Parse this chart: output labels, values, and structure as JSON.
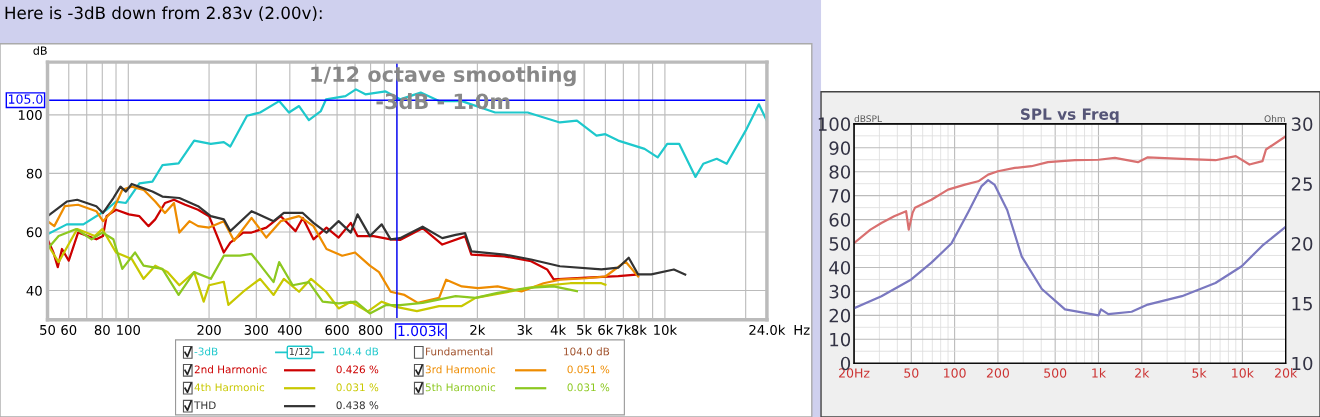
{
  "chart_data": [
    {
      "type": "line",
      "title": "Here is -3dB down from 2.83v (2.00v):",
      "xlabel": "Hz",
      "ylabel": "dB",
      "log": "x",
      "grid": true,
      "legend": "bottom",
      "xlim": [
        50,
        24000
      ],
      "ylim": [
        30,
        118
      ],
      "xticks": [
        50,
        60,
        {
          "value": 70,
          "label": null
        },
        80,
        {
          "value": 90,
          "label": null
        },
        100,
        200,
        300,
        400,
        {
          "value": 500,
          "label": null
        },
        600,
        {
          "value": 700,
          "label": null
        },
        800,
        {
          "value": 900,
          "label": null
        },
        {
          "value": 1000,
          "label": null
        },
        {
          "value": 2000,
          "label": "2k"
        },
        {
          "value": 3000,
          "label": "3k"
        },
        {
          "value": 4000,
          "label": "4k"
        },
        {
          "value": 5000,
          "label": "5k"
        },
        {
          "value": 6000,
          "label": "6k"
        },
        {
          "value": 7000,
          "label": "7k"
        },
        {
          "value": 8000,
          "label": "8k"
        },
        {
          "value": 9000,
          "label": null
        },
        {
          "value": 10000,
          "label": "10k"
        },
        {
          "value": 20000,
          "label": null
        },
        {
          "value": 24000,
          "label": "24.0k"
        }
      ],
      "yticks": [
        40,
        60,
        80,
        100
      ],
      "ref_lines": [
        {
          "axis": "y",
          "value": 105.0,
          "label": "105.0",
          "color": "#0000ff"
        },
        {
          "axis": "x",
          "value": 1003,
          "label": "1.003k",
          "color": "#0000ff"
        }
      ],
      "annotations": [
        "1/12 octave smoothing",
        "-3dB - 1.0m",
        "Fundamental",
        "104.0 dB",
        "1/12",
        "104.4 dB",
        "0.426 %",
        "0.051 %",
        "0.031 %",
        "0.031 %",
        "0.438 %"
      ],
      "series": [
        {
          "name": "-3dB",
          "color": "#1ec8cc",
          "x": [
            50,
            59,
            68,
            83,
            90,
            98,
            110,
            123,
            134,
            154,
            176,
            203,
            227,
            240,
            277,
            310,
            365,
            397,
            433,
            471,
            522,
            546,
            645,
            705,
            765,
            910,
            1030,
            1230,
            1440,
            1750,
            2330,
            3080,
            4060,
            4700,
            5560,
            6000,
            6700,
            8400,
            9400,
            10200,
            11300,
            13000,
            13900,
            15600,
            17000,
            20000,
            22400,
            24000
          ],
          "values": [
            59.2,
            62.6,
            62.6,
            67.6,
            70.4,
            69.9,
            76.6,
            77.2,
            82.8,
            83.4,
            91.2,
            90.1,
            90.7,
            89.2,
            99.7,
            100.8,
            104.7,
            100.8,
            103,
            98.2,
            101.3,
            105.3,
            106.4,
            108.7,
            107,
            108,
            105.3,
            107.6,
            104.7,
            104.7,
            100.8,
            100.8,
            97.4,
            98,
            92.9,
            93.4,
            91.2,
            88.4,
            85.5,
            90.1,
            90.1,
            78.8,
            83.3,
            85,
            83.3,
            94.6,
            103.6,
            97.9
          ]
        },
        {
          "name": "2nd Harmonic",
          "color": "#cc0000",
          "x": [
            50,
            52.6,
            54.6,
            56.6,
            60,
            65,
            76,
            80.5,
            83,
            90,
            100.5,
            110,
            119,
            126,
            137,
            148,
            163,
            182,
            200,
            227,
            240,
            268,
            288,
            327,
            370,
            420,
            447,
            490,
            548,
            608,
            675,
            715,
            820,
            950,
            1030,
            1250,
            1480,
            1800,
            1900,
            2520,
            3170,
            3640,
            3850,
            5100,
            6700,
            7950
          ],
          "values": [
            57.5,
            53,
            48,
            54.2,
            50.2,
            59.8,
            57.5,
            58.6,
            65.4,
            67.6,
            66,
            65.4,
            62,
            64.3,
            69.9,
            71,
            69.3,
            67.6,
            65.4,
            53,
            56.4,
            59.8,
            59.8,
            61.5,
            65.4,
            60.3,
            64.8,
            57.5,
            61.5,
            58.1,
            63.1,
            58.6,
            58.6,
            57.5,
            57.3,
            61.3,
            55.7,
            58.5,
            52.3,
            51.7,
            50,
            47.2,
            43.8,
            44.4,
            44.9,
            45.5
          ]
        },
        {
          "name": "3rd Harmonic",
          "color": "#ee8c00",
          "x": [
            50,
            53,
            58,
            65,
            76,
            80.5,
            88,
            95,
            103,
            114,
            126,
            137,
            148,
            155,
            169,
            182,
            200,
            227,
            248,
            288,
            327,
            370,
            433,
            490,
            548,
            627,
            700,
            795,
            860,
            950,
            1070,
            1200,
            1440,
            1530,
            1750,
            2010,
            2380,
            2920,
            3530,
            4060,
            5100,
            6000,
            7130,
            7950
          ],
          "values": [
            63.7,
            62,
            68.8,
            69.3,
            67.1,
            63.7,
            67.6,
            74.4,
            75.5,
            74.4,
            70.4,
            66.5,
            69.9,
            59.8,
            63.7,
            62,
            61.5,
            63.7,
            57,
            64.8,
            58.1,
            63.7,
            65.4,
            62,
            54.2,
            51.9,
            53,
            48.5,
            46.3,
            39.6,
            38.5,
            35.8,
            37.5,
            43.7,
            41.4,
            40.8,
            41.4,
            39.7,
            42.5,
            43.7,
            44.2,
            44.8,
            49.9,
            44.8
          ]
        },
        {
          "name": "4th Harmonic",
          "color": "#c8c800",
          "x": [
            50,
            55,
            64.5,
            75,
            80,
            90,
            103,
            114,
            126,
            140,
            155,
            176,
            191,
            200,
            227,
            236,
            268,
            310,
            348,
            380,
            433,
            480,
            546,
            608,
            675,
            780,
            880,
            985,
            1190,
            1440,
            1750,
            1970,
            2520,
            3340,
            4440,
            5800,
            6000
          ],
          "values": [
            55.8,
            49.7,
            61,
            58.6,
            61,
            53,
            50.8,
            44,
            48.5,
            46.3,
            41.8,
            46.3,
            36.2,
            41.8,
            43,
            35.1,
            39.6,
            44,
            38.5,
            44,
            39.6,
            44,
            39.6,
            33.9,
            36.2,
            32.8,
            36.2,
            34.5,
            33,
            34.7,
            34.7,
            37.5,
            39.3,
            41.4,
            42.5,
            42.5,
            42
          ]
        },
        {
          "name": "5th Harmonic",
          "color": "#8cc820",
          "x": [
            50,
            55,
            64,
            73,
            80,
            88,
            95,
            106,
            114,
            134,
            154,
            176,
            203,
            227,
            261,
            288,
            348,
            365,
            410,
            471,
            530,
            608,
            705,
            795,
            910,
            1030,
            1250,
            1660,
            1970,
            2380,
            3080,
            3850,
            4700
          ],
          "values": [
            54.2,
            58.6,
            61,
            57.5,
            59.8,
            57.5,
            47.4,
            53,
            48.5,
            47.4,
            38.5,
            46.3,
            44,
            51.9,
            51.9,
            52.5,
            42.9,
            49.7,
            41.8,
            42.9,
            36.2,
            35.6,
            36.2,
            32.2,
            35,
            35,
            35.8,
            38.1,
            37.5,
            39.2,
            40.9,
            41.4,
            39.8
          ]
        },
        {
          "name": "THD",
          "color": "#333333",
          "x": [
            50,
            59,
            64.5,
            76,
            80.5,
            88,
            93.5,
            98,
            103,
            114,
            123,
            134,
            155,
            182,
            203,
            227,
            240,
            288,
            348,
            380,
            447,
            490,
            548,
            608,
            675,
            715,
            795,
            880,
            950,
            1030,
            1250,
            1480,
            1660,
            1800,
            1900,
            2520,
            3170,
            4060,
            5800,
            6700,
            7330,
            7950,
            8900,
            10800,
            11900
          ],
          "values": [
            65.4,
            70.4,
            71,
            68.8,
            66.5,
            71.6,
            75.5,
            73.8,
            76.4,
            74.9,
            73.8,
            72.1,
            71.6,
            68.8,
            65.4,
            64.3,
            60.3,
            67.1,
            63.7,
            66.5,
            66.5,
            63.1,
            59.8,
            63.7,
            59.8,
            66,
            58.6,
            62.6,
            57.5,
            57.9,
            61.8,
            57.9,
            59,
            59.6,
            53.4,
            52.3,
            50.6,
            48.3,
            47.2,
            47.8,
            51.2,
            45.5,
            45.5,
            47.2,
            45.5
          ]
        }
      ]
    },
    {
      "type": "line",
      "title": "SPL vs Freq",
      "ylabel": "dBSPL",
      "y2label": "Ohm",
      "log": "x",
      "grid": true,
      "xlim": [
        20,
        20000
      ],
      "ylim": [
        0,
        100
      ],
      "y2lim": [
        10,
        30
      ],
      "xticks": [
        {
          "value": 20,
          "label": "20Hz"
        },
        50,
        100,
        200,
        500,
        {
          "value": 1000,
          "label": "1k"
        },
        {
          "value": 2000,
          "label": "2k"
        },
        {
          "value": 5000,
          "label": "5k"
        },
        {
          "value": 10000,
          "label": "10k"
        },
        {
          "value": 20000,
          "label": "20k"
        }
      ],
      "yticks": [
        0,
        10,
        20,
        30,
        40,
        50,
        60,
        70,
        80,
        90,
        100
      ],
      "y2ticks": [
        10,
        15,
        20,
        25,
        30
      ],
      "series": [
        {
          "color": "#d97070",
          "x": [
            20,
            26,
            31,
            38,
            46,
            48,
            51,
            53,
            69,
            90,
            118,
            146,
            171,
            200,
            262,
            342,
            445,
            687,
            1000,
            1300,
            1880,
            2200,
            3800,
            6500,
            9000,
            11200,
            13800,
            14600,
            20000
          ],
          "values": [
            50.2,
            55.8,
            58.6,
            61.4,
            63.5,
            55.8,
            62.8,
            64.9,
            68.3,
            72.5,
            74.6,
            76,
            78.8,
            80.2,
            81.6,
            82.3,
            84,
            84.8,
            85,
            85.8,
            84,
            86,
            85.4,
            84.8,
            86.5,
            83,
            84.4,
            89.3,
            94.8
          ]
        },
        {
          "color": "#7a78c0",
          "axis": "y2",
          "x": [
            20,
            31,
            50,
            69,
            95,
            124,
            154,
            171,
            190,
            232,
            293,
            404,
            585,
            1000,
            1040,
            1170,
            1700,
            2200,
            3800,
            6500,
            9900,
            13700,
            20000
          ],
          "values": [
            14.6,
            15.6,
            17,
            18.4,
            20.0,
            22.6,
            24.8,
            25.3,
            24.9,
            22.8,
            18.9,
            16.2,
            14.5,
            14.0,
            14.5,
            14.1,
            14.3,
            14.9,
            15.6,
            16.7,
            18.1,
            19.8,
            21.4
          ]
        }
      ]
    }
  ]
}
